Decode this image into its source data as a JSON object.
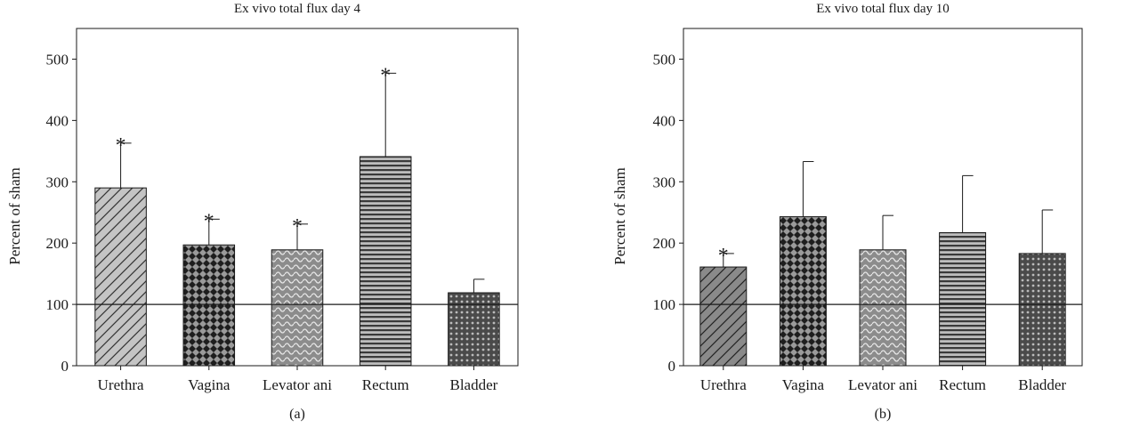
{
  "chart_data": [
    {
      "type": "bar",
      "panel_label": "(a)",
      "title": "Ex vivo total flux day 4",
      "xlabel": "",
      "ylabel": "Percent of sham",
      "ylim": [
        0,
        550
      ],
      "yticks": [
        0,
        100,
        200,
        300,
        400,
        500
      ],
      "reference_line": 100,
      "categories": [
        "Urethra",
        "Vagina",
        "Levator ani",
        "Rectum",
        "Bladder"
      ],
      "values": [
        290,
        197,
        189,
        341,
        119
      ],
      "errors": [
        73,
        42,
        42,
        136,
        22
      ],
      "significant": [
        "*",
        "*",
        "*",
        "*",
        ""
      ],
      "fill_colors": [
        "#c4c4c4",
        "#222222",
        "#8a8a8a",
        "#b0b0b0",
        "#555555"
      ],
      "patterns": [
        "diagonal-hatch",
        "diamond-checker",
        "wave",
        "horizontal-lines",
        "dots"
      ]
    },
    {
      "type": "bar",
      "panel_label": "(b)",
      "title": "Ex vivo total flux day 10",
      "xlabel": "",
      "ylabel": "Percent of sham",
      "ylim": [
        0,
        550
      ],
      "yticks": [
        0,
        100,
        200,
        300,
        400,
        500
      ],
      "reference_line": 100,
      "categories": [
        "Urethra",
        "Vagina",
        "Levator ani",
        "Rectum",
        "Bladder"
      ],
      "values": [
        161,
        243,
        189,
        217,
        183
      ],
      "errors": [
        22,
        90,
        56,
        93,
        71
      ],
      "significant": [
        "*",
        "",
        "",
        "",
        ""
      ],
      "fill_colors": [
        "#8a8a8a",
        "#222222",
        "#8a8a8a",
        "#b0b0b0",
        "#555555"
      ],
      "patterns": [
        "diagonal-hatch",
        "diamond-checker",
        "wave",
        "horizontal-lines",
        "dots"
      ]
    }
  ]
}
